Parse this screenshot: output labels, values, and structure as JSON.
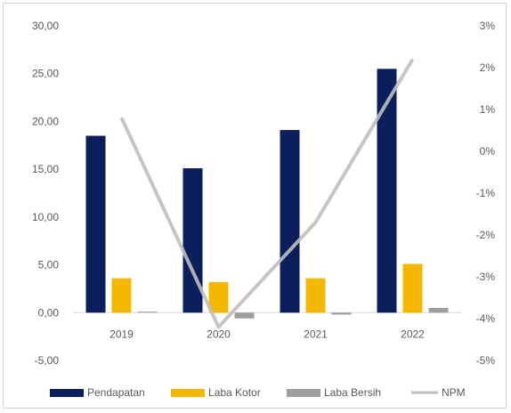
{
  "chart_data": {
    "type": "bar",
    "categories": [
      "2019",
      "2020",
      "2021",
      "2022"
    ],
    "series": [
      {
        "name": "Pendapatan",
        "type": "bar",
        "axis": "left",
        "color": "#0b1f5c",
        "values": [
          18.5,
          15.1,
          19.1,
          25.5
        ]
      },
      {
        "name": "Laba Kotor",
        "type": "bar",
        "axis": "left",
        "color": "#f5b800",
        "values": [
          3.6,
          3.2,
          3.6,
          5.1
        ]
      },
      {
        "name": "Laba Bersih",
        "type": "bar",
        "axis": "left",
        "color": "#9e9e9e",
        "values": [
          0.1,
          -0.6,
          -0.2,
          0.5
        ]
      },
      {
        "name": "NPM",
        "type": "line",
        "axis": "right",
        "color": "#bfbfbf",
        "values": [
          0.008,
          -0.042,
          -0.017,
          0.022
        ]
      }
    ],
    "y_left": {
      "ticks": [
        30,
        25,
        20,
        15,
        10,
        5,
        0,
        -5
      ],
      "tick_labels": [
        "30,00",
        "25,00",
        "20,00",
        "15,00",
        "10,00",
        "5,00",
        "0,00",
        "-5,00"
      ],
      "ylim": [
        -5,
        30
      ]
    },
    "y_right": {
      "ticks": [
        0.03,
        0.02,
        0.01,
        0,
        -0.01,
        -0.02,
        -0.03,
        -0.04,
        -0.05
      ],
      "tick_labels": [
        "3%",
        "2%",
        "1%",
        "0%",
        "-1%",
        "-2%",
        "-3%",
        "-4%",
        "-5%"
      ],
      "ylim": [
        -0.05,
        0.03
      ]
    },
    "grid": false,
    "legend": "bottom"
  }
}
